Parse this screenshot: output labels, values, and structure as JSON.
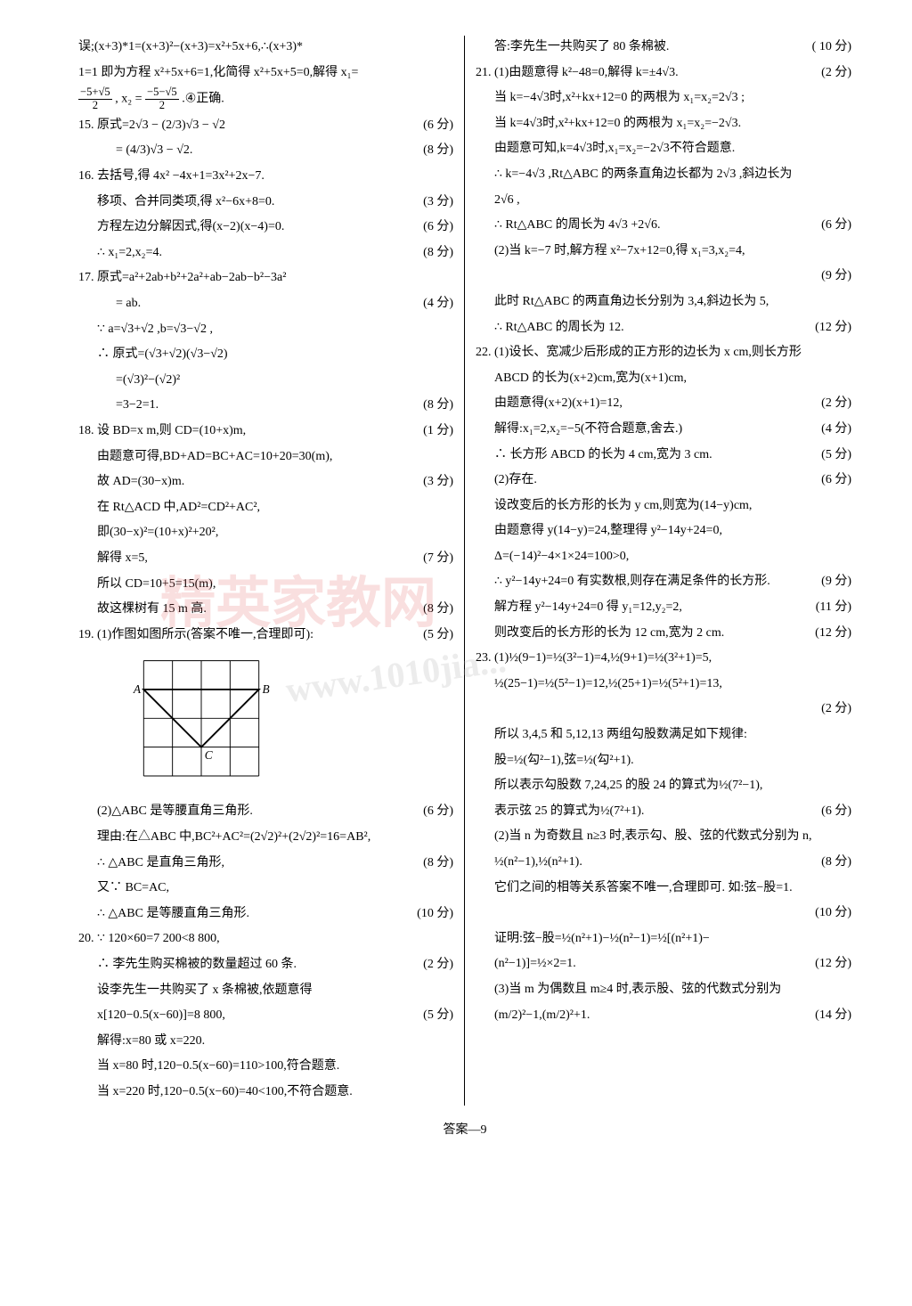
{
  "footer": "答案—9",
  "watermark_text": "精英家教网",
  "watermark_url": "www.1010jia...",
  "diagram": {
    "grid_size": 4,
    "cell": 34,
    "points": {
      "A": [
        0,
        1
      ],
      "B": [
        4,
        1
      ],
      "C": [
        2,
        3
      ]
    },
    "stroke": "#000",
    "line_width": 2
  },
  "left": [
    {
      "t": "误;(x+3)*1=(x+3)²−(x+3)=x²+5x+6,∴(x+3)*",
      "s": ""
    },
    {
      "t": "1=1 即为方程 x²+5x+6=1,化简得 x²+5x+5=0,解得 x₁=",
      "s": ""
    },
    {
      "t": "",
      "s": "",
      "frac": true
    },
    {
      "t": "15. 原式=2√3 − (2/3)√3 − √2",
      "s": "(6 分)"
    },
    {
      "t": "　　　= (4/3)√3 − √2.",
      "s": "(8 分)"
    },
    {
      "t": "16. 去括号,得 4x² −4x+1=3x²+2x−7.",
      "s": ""
    },
    {
      "t": "移项、合并同类项,得 x²−6x+8=0.",
      "s": "(3 分)",
      "i": 1
    },
    {
      "t": "方程左边分解因式,得(x−2)(x−4)=0.",
      "s": "(6 分)",
      "i": 1
    },
    {
      "t": "∴ x₁=2,x₂=4.",
      "s": "(8 分)",
      "i": 1
    },
    {
      "t": "17. 原式=a²+2ab+b²+2a²+ab−2ab−b²−3a²",
      "s": ""
    },
    {
      "t": "= ab.",
      "s": "(4 分)",
      "i": 2
    },
    {
      "t": "∵ a=√3+√2 ,b=√3−√2 ,",
      "s": "",
      "i": 1
    },
    {
      "t": "∴ 原式=(√3+√2)(√3−√2)",
      "s": "",
      "i": 1
    },
    {
      "t": "=(√3)²−(√2)²",
      "s": "",
      "i": 2
    },
    {
      "t": "=3−2=1.",
      "s": "(8 分)",
      "i": 2
    },
    {
      "t": "18. 设 BD=x m,则 CD=(10+x)m,",
      "s": "(1 分)"
    },
    {
      "t": "由题意可得,BD+AD=BC+AC=10+20=30(m),",
      "s": "",
      "i": 1
    },
    {
      "t": "故 AD=(30−x)m.",
      "s": "(3 分)",
      "i": 1
    },
    {
      "t": "在 Rt△ACD 中,AD²=CD²+AC²,",
      "s": "",
      "i": 1
    },
    {
      "t": "即(30−x)²=(10+x)²+20²,",
      "s": "",
      "i": 1
    },
    {
      "t": "解得 x=5,",
      "s": "(7 分)",
      "i": 1
    },
    {
      "t": "所以 CD=10+5=15(m),",
      "s": "",
      "i": 1
    },
    {
      "t": "故这棵树有 15 m 高.",
      "s": "(8 分)",
      "i": 1
    },
    {
      "t": "19. (1)作图如图所示(答案不唯一,合理即可):",
      "s": "(5 分)"
    },
    {
      "t": "",
      "s": "",
      "diagram": true
    },
    {
      "t": "(2)△ABC 是等腰直角三角形.",
      "s": "(6 分)",
      "i": 1
    },
    {
      "t": "理由:在△ABC 中,BC²+AC²=(2√2)²+(2√2)²=16=AB²,",
      "s": "",
      "i": 1
    },
    {
      "t": "∴ △ABC 是直角三角形,",
      "s": "(8 分)",
      "i": 1
    },
    {
      "t": "又∵ BC=AC,",
      "s": "",
      "i": 1
    },
    {
      "t": "∴ △ABC 是等腰直角三角形.",
      "s": "(10 分)",
      "i": 1
    },
    {
      "t": "20. ∵ 120×60=7 200<8 800,",
      "s": ""
    },
    {
      "t": "∴ 李先生购买棉被的数量超过 60 条.",
      "s": "(2 分)",
      "i": 1
    },
    {
      "t": "设李先生一共购买了 x 条棉被,依题意得",
      "s": "",
      "i": 1
    },
    {
      "t": "x[120−0.5(x−60)]=8 800,",
      "s": "(5 分)",
      "i": 1
    },
    {
      "t": "解得:x=80 或 x=220.",
      "s": "",
      "i": 1
    },
    {
      "t": "当 x=80 时,120−0.5(x−60)=110>100,符合题意.",
      "s": "",
      "i": 1
    },
    {
      "t": "当 x=220 时,120−0.5(x−60)=40<100,不符合题意.",
      "s": "",
      "i": 1
    }
  ],
  "right": [
    {
      "t": "答:李先生一共购买了 80 条棉被.",
      "s": "( 10 分)",
      "i": 1
    },
    {
      "t": "21. (1)由题意得 k²−48=0,解得 k=±4√3.",
      "s": "(2 分)"
    },
    {
      "t": "当 k=−4√3时,x²+kx+12=0 的两根为 x₁=x₂=2√3 ;",
      "s": "",
      "i": 1
    },
    {
      "t": "当 k=4√3时,x²+kx+12=0 的两根为 x₁=x₂=−2√3.",
      "s": "",
      "i": 1
    },
    {
      "t": "由题意可知,k=4√3时,x₁=x₂=−2√3不符合题意.",
      "s": "",
      "i": 1
    },
    {
      "t": "∴ k=−4√3 ,Rt△ABC 的两条直角边长都为 2√3 ,斜边长为",
      "s": "",
      "i": 1
    },
    {
      "t": "2√6 ,",
      "s": "",
      "i": 1
    },
    {
      "t": "∴ Rt△ABC 的周长为 4√3 +2√6.",
      "s": "(6 分)",
      "i": 1
    },
    {
      "t": "(2)当 k=−7 时,解方程 x²−7x+12=0,得 x₁=3,x₂=4,",
      "s": "",
      "i": 1
    },
    {
      "t": "",
      "s": "(9 分)",
      "i": 1
    },
    {
      "t": "此时 Rt△ABC 的两直角边长分别为 3,4,斜边长为 5,",
      "s": "",
      "i": 1
    },
    {
      "t": "∴ Rt△ABC 的周长为 12.",
      "s": "(12 分)",
      "i": 1
    },
    {
      "t": "22. (1)设长、宽减少后形成的正方形的边长为 x cm,则长方形",
      "s": ""
    },
    {
      "t": "ABCD 的长为(x+2)cm,宽为(x+1)cm,",
      "s": "",
      "i": 1
    },
    {
      "t": "由题意得(x+2)(x+1)=12,",
      "s": "(2 分)",
      "i": 1
    },
    {
      "t": "解得:x₁=2,x₂=−5(不符合题意,舍去.)",
      "s": "(4 分)",
      "i": 1
    },
    {
      "t": "∴ 长方形 ABCD 的长为 4 cm,宽为 3 cm.",
      "s": "(5 分)",
      "i": 1
    },
    {
      "t": "(2)存在.",
      "s": "(6 分)",
      "i": 1
    },
    {
      "t": "设改变后的长方形的长为 y cm,则宽为(14−y)cm,",
      "s": "",
      "i": 1
    },
    {
      "t": "由题意得 y(14−y)=24,整理得 y²−14y+24=0,",
      "s": "",
      "i": 1
    },
    {
      "t": "Δ=(−14)²−4×1×24=100>0,",
      "s": "",
      "i": 1
    },
    {
      "t": "∴ y²−14y+24=0 有实数根,则存在满足条件的长方形.",
      "s": "(9 分)",
      "i": 1
    },
    {
      "t": "解方程 y²−14y+24=0 得 y₁=12,y₂=2,",
      "s": "(11 分)",
      "i": 1
    },
    {
      "t": "则改变后的长方形的长为 12 cm,宽为 2 cm.",
      "s": "(12 分)",
      "i": 1
    },
    {
      "t": "23. (1)½(9−1)=½(3²−1)=4,½(9+1)=½(3²+1)=5,",
      "s": ""
    },
    {
      "t": "½(25−1)=½(5²−1)=12,½(25+1)=½(5²+1)=13,",
      "s": "",
      "i": 1
    },
    {
      "t": "",
      "s": "(2 分)",
      "i": 1
    },
    {
      "t": "所以 3,4,5 和 5,12,13 两组勾股数满足如下规律:",
      "s": "",
      "i": 1
    },
    {
      "t": "股=½(勾²−1),弦=½(勾²+1).",
      "s": "",
      "i": 1
    },
    {
      "t": "所以表示勾股数 7,24,25 的股 24 的算式为½(7²−1),",
      "s": "",
      "i": 1
    },
    {
      "t": "表示弦 25 的算式为½(7²+1).",
      "s": "(6 分)",
      "i": 1
    },
    {
      "t": "(2)当 n 为奇数且 n≥3 时,表示勾、股、弦的代数式分别为 n,",
      "s": "",
      "i": 1
    },
    {
      "t": "½(n²−1),½(n²+1).",
      "s": "(8 分)",
      "i": 1
    },
    {
      "t": "它们之间的相等关系答案不唯一,合理即可. 如:弦−股=1.",
      "s": "",
      "i": 1
    },
    {
      "t": "",
      "s": "(10 分)",
      "i": 1
    },
    {
      "t": "证明:弦−股=½(n²+1)−½(n²−1)=½[(n²+1)−",
      "s": "",
      "i": 1
    },
    {
      "t": "(n²−1)]=½×2=1.",
      "s": "(12 分)",
      "i": 1
    },
    {
      "t": "(3)当 m 为偶数且 m≥4 时,表示股、弦的代数式分别为",
      "s": "",
      "i": 1
    },
    {
      "t": "(m/2)²−1,(m/2)²+1.",
      "s": "(14 分)",
      "i": 1
    }
  ]
}
